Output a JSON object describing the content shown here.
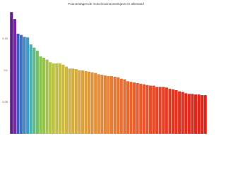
{
  "chart_data": {
    "type": "bar",
    "title": "Pourcentages de mots bruxinocentriques en allemand",
    "categories": [
      null,
      null,
      null,
      null,
      null,
      null,
      null,
      null,
      null,
      null,
      null,
      null,
      null,
      null,
      null,
      null,
      null,
      null,
      null,
      null,
      null,
      null,
      null,
      null,
      null,
      null,
      null,
      null,
      null,
      null,
      null,
      null,
      null,
      null,
      null,
      null,
      null,
      null,
      null,
      null,
      null,
      null,
      null,
      null,
      null,
      null,
      null,
      null,
      null,
      null,
      null,
      null,
      null,
      null,
      null,
      null,
      null,
      null,
      null,
      null,
      null
    ],
    "values": [
      0.192,
      0.181,
      0.158,
      0.156,
      0.153,
      0.152,
      0.141,
      0.136,
      0.131,
      0.122,
      0.12,
      0.117,
      0.113,
      0.111,
      0.111,
      0.111,
      0.109,
      0.106,
      0.103,
      0.103,
      0.102,
      0.1,
      0.1,
      0.099,
      0.098,
      0.097,
      0.096,
      0.094,
      0.093,
      0.092,
      0.091,
      0.091,
      0.09,
      0.089,
      0.087,
      0.086,
      0.083,
      0.082,
      0.081,
      0.08,
      0.079,
      0.078,
      0.077,
      0.076,
      0.076,
      0.074,
      0.074,
      0.074,
      0.073,
      0.071,
      0.07,
      0.069,
      0.067,
      0.066,
      0.064,
      0.063,
      0.063,
      0.062,
      0.062,
      0.061,
      0.061
    ],
    "colors": [
      "#5e1f8c",
      "#7a1fa2",
      "#3a5bb8",
      "#3c6fc2",
      "#3e85c6",
      "#3f9bc4",
      "#49b2b0",
      "#5dbb8a",
      "#74bf62",
      "#87c150",
      "#98c34a",
      "#a6c447",
      "#b1c446",
      "#bac245",
      "#c1c044",
      "#c6bd43",
      "#cab943",
      "#ceb542",
      "#d1b142",
      "#d4ad41",
      "#d6a940",
      "#d8a53f",
      "#daa13e",
      "#dc9d3d",
      "#dd993c",
      "#df953b",
      "#e0913a",
      "#e18d39",
      "#e28938",
      "#e38537",
      "#e48136",
      "#e57d35",
      "#e57934",
      "#e67533",
      "#e67132",
      "#e76d31",
      "#e76930",
      "#e8652f",
      "#e8612e",
      "#e85d2d",
      "#e8592c",
      "#e8552b",
      "#e8512a",
      "#e84d29",
      "#e74928",
      "#e74527",
      "#e64226",
      "#e63f25",
      "#e53c24",
      "#e43923",
      "#e33622",
      "#e23421",
      "#e13220",
      "#e0301f",
      "#df2e1e",
      "#de2c1e",
      "#dd2a1d",
      "#dc281c",
      "#db271c",
      "#da261b",
      "#d9251b"
    ],
    "ylim": [
      0,
      0.2
    ],
    "yticks": [
      0.05,
      0.1,
      0.15
    ]
  }
}
